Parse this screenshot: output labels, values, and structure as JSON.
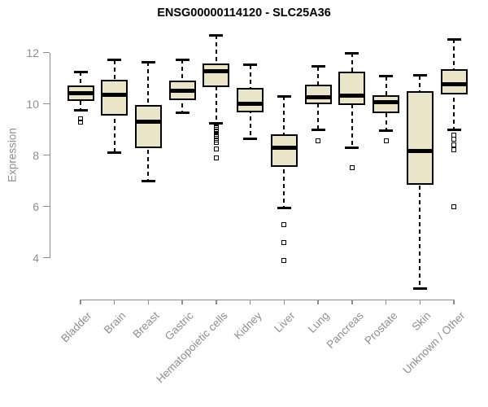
{
  "header": {
    "title": "ENSG00000114120 - SLC25A36"
  },
  "chart_data": {
    "type": "boxplot",
    "title": "ENSG00000114120 - SLC25A36",
    "xlabel": "",
    "ylabel": "Expression",
    "y_ticks": [
      4,
      6,
      8,
      10,
      12
    ],
    "ylim": [
      4,
      12
    ],
    "grid": false,
    "legend": "none",
    "x_tick_label_angle_deg": 45,
    "categories": [
      "Bladder",
      "Brain",
      "Breast",
      "Gastric",
      "Hematopoietic cells",
      "Kidney",
      "Liver",
      "Lung",
      "Pancreas",
      "Prostate",
      "Skin",
      "Unknown / Other"
    ],
    "series": [
      {
        "label": "Bladder",
        "whisker_low": 9.75,
        "q1": 10.1,
        "median": 10.42,
        "q3": 10.73,
        "whisker_high": 11.25,
        "outliers": [
          9.4,
          9.3
        ]
      },
      {
        "label": "Brain",
        "whisker_low": 8.1,
        "q1": 9.55,
        "median": 10.35,
        "q3": 10.93,
        "whisker_high": 11.7,
        "outliers": []
      },
      {
        "label": "Breast",
        "whisker_low": 7.0,
        "q1": 8.28,
        "median": 9.3,
        "q3": 9.95,
        "whisker_high": 11.62,
        "outliers": []
      },
      {
        "label": "Gastric",
        "whisker_low": 9.65,
        "q1": 10.15,
        "median": 10.5,
        "q3": 10.9,
        "whisker_high": 11.72,
        "outliers": []
      },
      {
        "label": "Hematopoietic cells",
        "whisker_low": 9.25,
        "q1": 10.65,
        "median": 11.27,
        "q3": 11.58,
        "whisker_high": 12.68,
        "outliers": [
          9.15,
          9.1,
          9.05,
          9.0,
          8.95,
          8.9,
          8.8,
          8.7,
          8.6,
          8.5,
          8.25,
          7.9
        ]
      },
      {
        "label": "Kidney",
        "whisker_low": 8.65,
        "q1": 9.66,
        "median": 10.0,
        "q3": 10.62,
        "whisker_high": 11.52,
        "outliers": []
      },
      {
        "label": "Liver",
        "whisker_low": 5.95,
        "q1": 7.55,
        "median": 8.27,
        "q3": 8.8,
        "whisker_high": 10.3,
        "outliers": [
          5.3,
          4.6,
          3.9
        ]
      },
      {
        "label": "Lung",
        "whisker_low": 9.0,
        "q1": 9.97,
        "median": 10.25,
        "q3": 10.74,
        "whisker_high": 11.45,
        "outliers": [
          8.55
        ]
      },
      {
        "label": "Pancreas",
        "whisker_low": 8.28,
        "q1": 9.94,
        "median": 10.32,
        "q3": 11.24,
        "whisker_high": 11.97,
        "outliers": [
          7.5
        ]
      },
      {
        "label": "Prostate",
        "whisker_low": 8.95,
        "q1": 9.65,
        "median": 10.06,
        "q3": 10.34,
        "whisker_high": 11.07,
        "outliers": [
          8.55
        ]
      },
      {
        "label": "Skin",
        "whisker_low": 2.8,
        "q1": 6.85,
        "median": 8.17,
        "q3": 10.5,
        "whisker_high": 11.1,
        "outliers": []
      },
      {
        "label": "Unknown / Other",
        "whisker_low": 9.0,
        "q1": 10.38,
        "median": 10.76,
        "q3": 11.34,
        "whisker_high": 12.52,
        "outliers": [
          8.78,
          8.62,
          8.4,
          8.2,
          6.0
        ]
      }
    ],
    "colors": {
      "box_fill": "#EAE4C8",
      "box_border": "#000000",
      "median_line": "#000000",
      "whisker": "#000000",
      "outlier": "#000000",
      "axis_line": "#8C8C8C",
      "tick_label": "#8E8E8E",
      "title_color": "#000000",
      "background": "#FFFFFF"
    }
  }
}
